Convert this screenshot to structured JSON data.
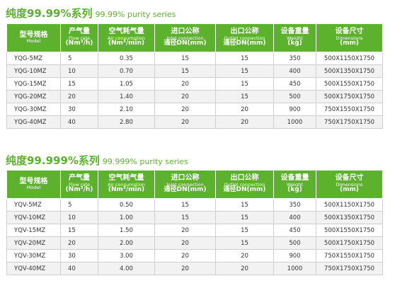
{
  "sections": [
    {
      "title_cn": "纯度99.99%系列",
      "title_en": "99.99% purity series",
      "rows": [
        [
          "YQG-5MZ",
          "5",
          "0.35",
          "15",
          "15",
          "350",
          "500X1150X1750"
        ],
        [
          "YQG-10MZ",
          "10",
          "0.70",
          "15",
          "15",
          "400",
          "500X1350X1750"
        ],
        [
          "YQG-15MZ",
          "15",
          "1.05",
          "20",
          "15",
          "450",
          "500X1550X1750"
        ],
        [
          "YQG-20MZ",
          "20",
          "1.40",
          "20",
          "15",
          "500",
          "500X1750X1750"
        ],
        [
          "YQG-30MZ",
          "30",
          "2.10",
          "20",
          "20",
          "900",
          "750X1550X1750"
        ],
        [
          "YQG-40MZ",
          "40",
          "2.80",
          "20",
          "20",
          "1000",
          "750X1750X1750"
        ]
      ]
    },
    {
      "title_cn": "纯度99.999%系列",
      "title_en": "99.999% purity series",
      "rows": [
        [
          "YQV-5MZ",
          "5",
          "0.50",
          "15",
          "15",
          "350",
          "500X1150X1750"
        ],
        [
          "YQV-10MZ",
          "10",
          "1.00",
          "15",
          "15",
          "400",
          "500X1350X1750"
        ],
        [
          "YQV-15MZ",
          "15",
          "1.50",
          "20",
          "15",
          "450",
          "500X1550X1750"
        ],
        [
          "YQV-20MZ",
          "20",
          "2.00",
          "20",
          "15",
          "500",
          "500X1750X1750"
        ],
        [
          "YQV-30MZ",
          "30",
          "3.00",
          "20",
          "20",
          "900",
          "750X1550X1750"
        ],
        [
          "YQV-40MZ",
          "40",
          "4.00",
          "20",
          "20",
          "1000",
          "750X1750X1750"
        ]
      ]
    }
  ],
  "columns": [
    {
      "cn": "型号规格",
      "en": "Model",
      "unit": ""
    },
    {
      "cn": "产气量",
      "en": "Flow rate",
      "unit": "(Nm³/h)"
    },
    {
      "cn": "空气耗气量",
      "en": "Air consumption",
      "unit": "(Nm³/min)"
    },
    {
      "cn": "进口公称",
      "en": "Inlet connection",
      "unit": "通径DN(mm)"
    },
    {
      "cn": "出口公称",
      "en": "Outlet connection",
      "unit": "通径DN(mm)"
    },
    {
      "cn": "设备重量",
      "en": "Weight",
      "unit": "(kg)"
    },
    {
      "cn": "设备尺寸",
      "en": "Dimensions",
      "unit": "(mm)"
    }
  ],
  "colors": {
    "accent": "#5cb12d",
    "row_alt": "#f2f2f2"
  }
}
